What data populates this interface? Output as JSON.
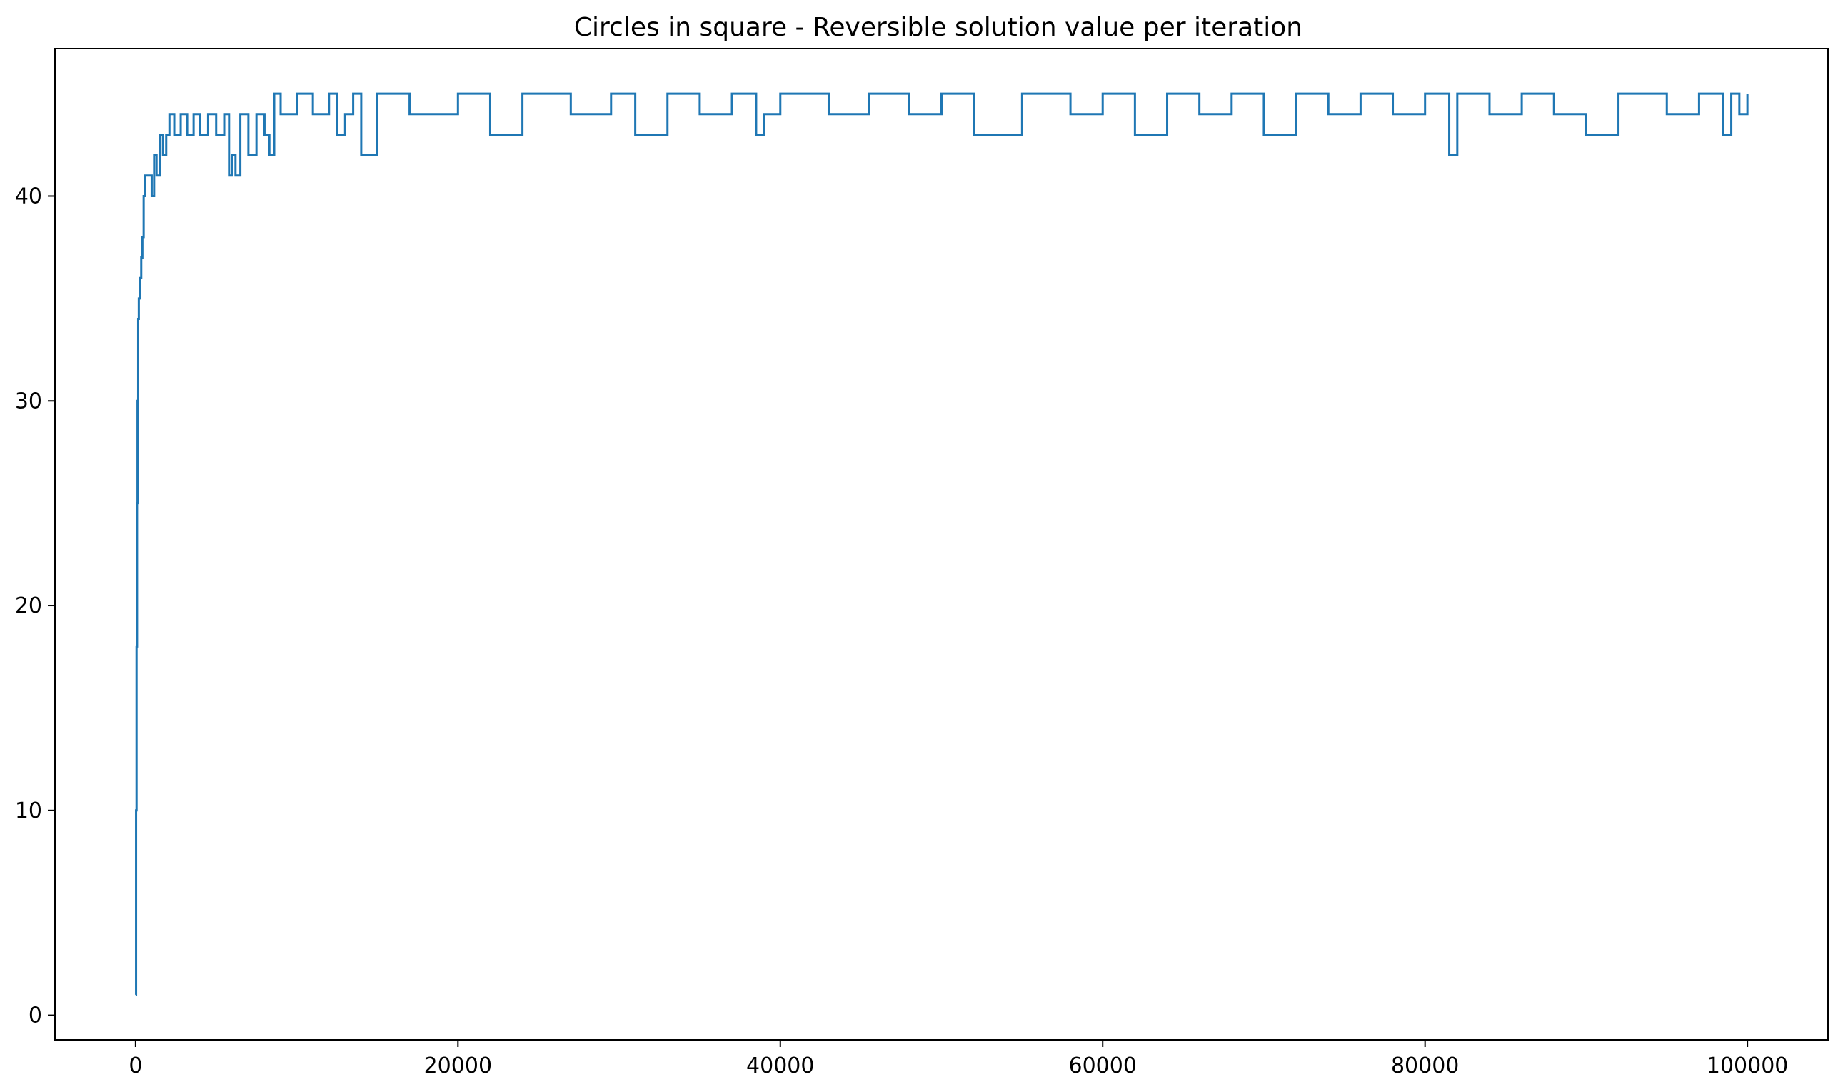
{
  "chart_data": {
    "type": "line",
    "title": "Circles in square - Reversible solution value per iteration",
    "xlabel": "",
    "ylabel": "",
    "xlim": [
      -5000,
      105000
    ],
    "ylim": [
      -1.2,
      47.2
    ],
    "xticks": [
      0,
      20000,
      40000,
      60000,
      80000,
      100000
    ],
    "yticks": [
      0,
      10,
      20,
      30,
      40
    ],
    "grid": false,
    "line_color": "#1f77b4",
    "series": [
      {
        "x": [
          0,
          30,
          60,
          90,
          120,
          160,
          200,
          250,
          300,
          350,
          420,
          500,
          600,
          700,
          850,
          1000,
          1150,
          1300,
          1500,
          1700,
          1900,
          2100,
          2400,
          2800,
          3200,
          3600,
          4000,
          4500,
          5000,
          5500,
          5800,
          6000,
          6200,
          6500,
          7000,
          7500,
          8000,
          8300,
          8600,
          9000,
          10000,
          11000,
          12000,
          12500,
          13000,
          13500,
          14000,
          15000,
          17000,
          20000,
          22000,
          24000,
          27000,
          29500,
          31000,
          33000,
          35000,
          37000,
          38500,
          39000,
          40000,
          41000,
          43000,
          45500,
          48000,
          50000,
          52000,
          55000,
          58000,
          60000,
          62000,
          64000,
          66000,
          68000,
          70000,
          72000,
          74000,
          76000,
          78000,
          80000,
          81500,
          82000,
          84000,
          86000,
          88000,
          90000,
          92000,
          95000,
          97000,
          98500,
          99000,
          99500,
          100000
        ],
        "y": [
          1,
          10,
          18,
          25,
          30,
          34,
          35,
          36,
          36,
          37,
          38,
          40,
          41,
          41,
          41,
          40,
          42,
          41,
          43,
          42,
          43,
          44,
          43,
          44,
          43,
          44,
          43,
          44,
          43,
          44,
          41,
          42,
          41,
          44,
          42,
          44,
          43,
          42,
          45,
          44,
          45,
          44,
          45,
          43,
          44,
          45,
          42,
          45,
          44,
          45,
          43,
          45,
          44,
          45,
          43,
          45,
          44,
          45,
          43,
          44,
          45,
          45,
          44,
          45,
          44,
          45,
          43,
          45,
          44,
          45,
          43,
          45,
          44,
          45,
          43,
          45,
          44,
          45,
          44,
          45,
          42,
          45,
          44,
          45,
          44,
          43,
          45,
          44,
          45,
          43,
          45,
          44,
          45
        ]
      }
    ]
  }
}
